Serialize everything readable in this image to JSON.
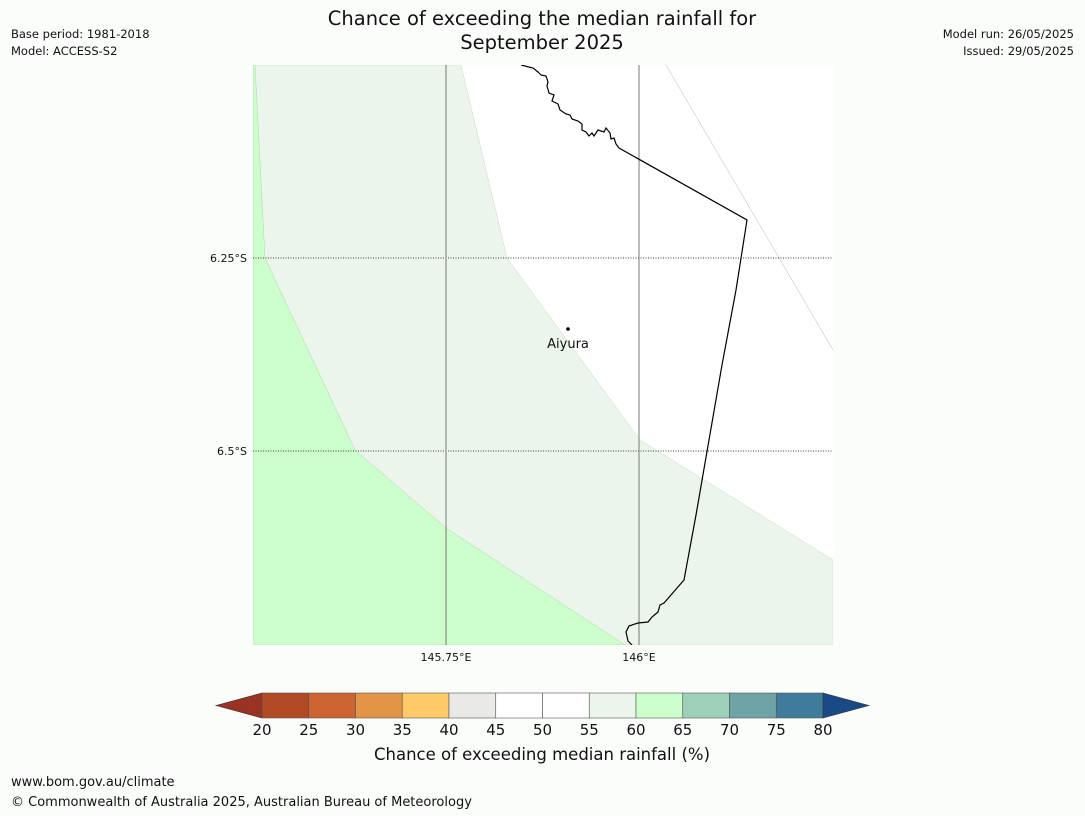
{
  "header": {
    "title_line1": "Chance of exceeding the median rainfall for",
    "title_line2": "September 2025",
    "base_period": "Base period: 1981-2018",
    "model": "Model: ACCESS-S2",
    "model_run": "Model run: 26/05/2025",
    "issued": "Issued: 29/05/2025"
  },
  "map": {
    "lat_labels": [
      "6.25°S",
      "6.5°S"
    ],
    "lon_labels": [
      "145.75°E",
      "146°E"
    ],
    "place_label": "Aiyura",
    "colors": {
      "band_60_65": "#ccffcc",
      "band_55_60": "#ebf5eb",
      "band_50_55": "#ffffff",
      "coastline": "#000000"
    }
  },
  "colorbar": {
    "label": "Chance of exceeding median rainfall (%)",
    "ticks": [
      "20",
      "25",
      "30",
      "35",
      "40",
      "45",
      "50",
      "55",
      "60",
      "65",
      "70",
      "75",
      "80"
    ],
    "under_color": "#9a3324",
    "over_color": "#1a4a85",
    "colors": [
      "#b34a26",
      "#cd6232",
      "#e29447",
      "#fdca67",
      "#ebe9e5",
      "#ffffff",
      "#ffffff",
      "#ebf5eb",
      "#ccffcc",
      "#9ed0b9",
      "#6ea4a6",
      "#3f7b9b"
    ]
  },
  "footer": {
    "website": "www.bom.gov.au/climate",
    "copyright": "© Commonwealth of Australia 2025, Australian Bureau of Meteorology"
  }
}
